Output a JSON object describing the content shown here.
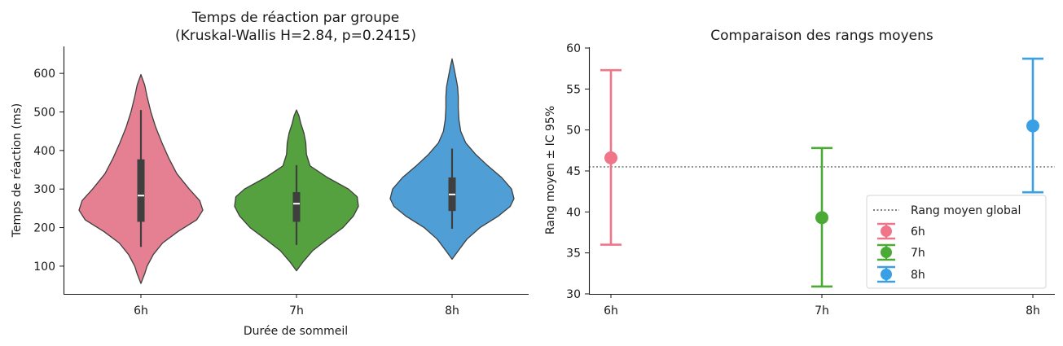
{
  "chart_data": [
    {
      "type": "violin",
      "title_line1": "Temps de réaction par groupe",
      "title_line2": "(Kruskal-Wallis H=2.84, p=0.2415)",
      "xlabel": "Durée de sommeil",
      "ylabel": "Temps de réaction (ms)",
      "categories": [
        "6h",
        "7h",
        "8h"
      ],
      "colors": [
        "#e57f92",
        "#55a13f",
        "#4f9fd6"
      ],
      "ylim": [
        28,
        670
      ],
      "yticks": [
        100,
        200,
        300,
        400,
        500,
        600
      ],
      "ytick_labels": [
        "100",
        "200",
        "300",
        "400",
        "500",
        "600"
      ],
      "groups": [
        {
          "name": "6h",
          "min": 55,
          "max": 597,
          "whisker_low": 150,
          "whisker_high": 505,
          "q1": 215,
          "median": 283,
          "q3": 377,
          "density": [
            [
              55,
              0
            ],
            [
              80,
              0.06
            ],
            [
              100,
              0.1
            ],
            [
              130,
              0.2
            ],
            [
              160,
              0.35
            ],
            [
              190,
              0.6
            ],
            [
              220,
              0.9
            ],
            [
              245,
              1.0
            ],
            [
              270,
              0.95
            ],
            [
              300,
              0.78
            ],
            [
              340,
              0.58
            ],
            [
              380,
              0.45
            ],
            [
              420,
              0.34
            ],
            [
              460,
              0.24
            ],
            [
              500,
              0.16
            ],
            [
              540,
              0.1
            ],
            [
              570,
              0.06
            ],
            [
              597,
              0
            ]
          ]
        },
        {
          "name": "7h",
          "min": 88,
          "max": 505,
          "whisker_low": 155,
          "whisker_high": 362,
          "q1": 215,
          "median": 262,
          "q3": 292,
          "density": [
            [
              88,
              0
            ],
            [
              110,
              0.1
            ],
            [
              140,
              0.26
            ],
            [
              170,
              0.5
            ],
            [
              200,
              0.75
            ],
            [
              230,
              0.92
            ],
            [
              255,
              1.0
            ],
            [
              280,
              0.98
            ],
            [
              300,
              0.84
            ],
            [
              330,
              0.5
            ],
            [
              360,
              0.22
            ],
            [
              390,
              0.16
            ],
            [
              420,
              0.15
            ],
            [
              445,
              0.12
            ],
            [
              470,
              0.07
            ],
            [
              490,
              0.04
            ],
            [
              505,
              0
            ]
          ]
        },
        {
          "name": "8h",
          "min": 118,
          "max": 638,
          "whisker_low": 197,
          "whisker_high": 405,
          "q1": 243,
          "median": 286,
          "q3": 330,
          "density": [
            [
              118,
              0
            ],
            [
              140,
              0.1
            ],
            [
              170,
              0.24
            ],
            [
              200,
              0.45
            ],
            [
              230,
              0.75
            ],
            [
              255,
              0.94
            ],
            [
              275,
              1.0
            ],
            [
              300,
              0.96
            ],
            [
              330,
              0.8
            ],
            [
              360,
              0.58
            ],
            [
              390,
              0.38
            ],
            [
              420,
              0.22
            ],
            [
              450,
              0.14
            ],
            [
              480,
              0.11
            ],
            [
              510,
              0.1
            ],
            [
              540,
              0.1
            ],
            [
              565,
              0.09
            ],
            [
              590,
              0.06
            ],
            [
              615,
              0.03
            ],
            [
              638,
              0
            ]
          ]
        }
      ]
    },
    {
      "type": "errorbar",
      "title": "Comparaison des rangs moyens",
      "ylabel": "Rang moyen ± IC 95%",
      "categories": [
        "6h",
        "7h",
        "8h"
      ],
      "colors": [
        "#f07589",
        "#4aaa35",
        "#3aa0e5"
      ],
      "ylim": [
        29.5,
        60
      ],
      "yticks": [
        30,
        35,
        40,
        45,
        50,
        55,
        60
      ],
      "ytick_labels": [
        "30",
        "35",
        "40",
        "45",
        "50",
        "55",
        "60"
      ],
      "points": [
        {
          "name": "6h",
          "mean": 46.6,
          "low": 36.0,
          "high": 57.3
        },
        {
          "name": "7h",
          "mean": 39.3,
          "low": 30.9,
          "high": 47.8
        },
        {
          "name": "8h",
          "mean": 50.5,
          "low": 42.4,
          "high": 58.7
        }
      ],
      "reference_line": {
        "value": 45.5,
        "label": "Rang moyen global",
        "color": "#808080"
      },
      "legend": {
        "position": "lower-right",
        "entries": [
          "Rang moyen global",
          "6h",
          "7h",
          "8h"
        ]
      }
    }
  ]
}
